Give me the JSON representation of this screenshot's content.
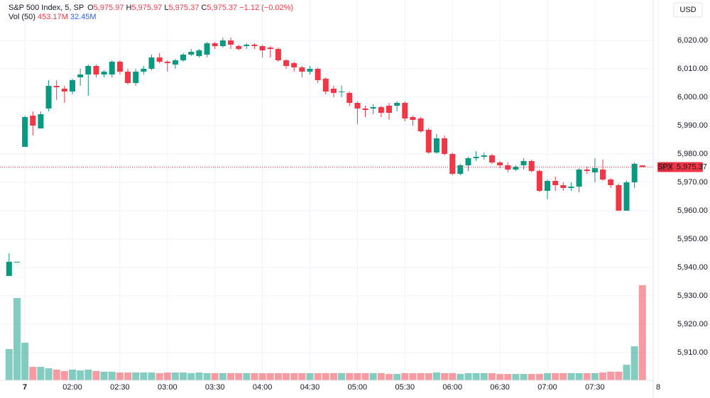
{
  "chart_data": {
    "type": "candlestick",
    "header": {
      "symbol": "S&P 500 Index, 5, SP",
      "o_label": "O",
      "o_value": "5,975.97",
      "h_label": "H",
      "h_value": "5,975.97",
      "l_label": "L",
      "l_value": "5,975.37",
      "c_label": "C",
      "c_value": "5,975.37",
      "change": "−1.12 (−0.02%)"
    },
    "volume_legend": {
      "name": "Vol (50)",
      "value": "453.17M",
      "ma": "32.45M"
    },
    "currency": "USD",
    "last_price": {
      "symbol": "SPX",
      "value": 5975.37,
      "label": "5,975.37"
    },
    "categories": [
      null,
      null,
      "7",
      null,
      null,
      null,
      null,
      null,
      "02:00",
      null,
      null,
      null,
      null,
      null,
      "02:30",
      null,
      null,
      null,
      null,
      null,
      "03:00",
      null,
      null,
      null,
      null,
      null,
      "03:30",
      null,
      null,
      null,
      null,
      null,
      "04:00",
      null,
      null,
      null,
      null,
      null,
      "04:30",
      null,
      null,
      null,
      null,
      null,
      "05:00",
      null,
      null,
      null,
      null,
      null,
      "05:30",
      null,
      null,
      null,
      null,
      null,
      "06:00",
      null,
      null,
      null,
      null,
      null,
      "06:30",
      null,
      null,
      null,
      null,
      null,
      "07:00",
      null,
      null,
      null,
      null,
      null,
      "07:30",
      null,
      null,
      null,
      null,
      null,
      null,
      null,
      "8"
    ],
    "open": [
      5937,
      5942,
      5982.5,
      5993.5,
      5989,
      5996,
      6004,
      6003,
      6002,
      6007,
      6008,
      6011,
      6008,
      6008,
      6012.5,
      6009,
      6005,
      6009,
      6010,
      6014,
      6012.5,
      6011.5,
      6013,
      6015,
      6014.5,
      6015,
      6019,
      6018,
      6020,
      6018,
      6018,
      6018.5,
      6018,
      6017.5,
      6017,
      6013,
      6012,
      6010.5,
      6009,
      6010,
      6006.5,
      6003,
      6002,
      6001.5,
      5998,
      5996,
      5996,
      5996.5,
      5997,
      5997,
      5998,
      5993,
      5992.5,
      5988.5,
      5980.5,
      5985.5,
      5980,
      5973,
      5976,
      5978.5,
      5979,
      5979.5,
      5977,
      5976,
      5974.5,
      5976,
      5977.5,
      5974,
      5967,
      5970.5,
      5969,
      5968,
      5968.5,
      5974.5,
      5973.5,
      5974.5,
      5971,
      5969,
      5960,
      5970,
      5975.97,
      null,
      null
    ],
    "high": [
      5945,
      5942,
      5993.5,
      5995,
      5995,
      6006,
      6006,
      6004,
      6006.5,
      6010,
      6011.5,
      6011.5,
      6009.5,
      6013,
      6013,
      6010,
      6010,
      6011,
      6015,
      6015.5,
      6013,
      6013.5,
      6015.5,
      6017,
      6017,
      6019.5,
      6019.5,
      6021,
      6021,
      6018.5,
      6019,
      6019,
      6018.5,
      6018,
      6017.5,
      6013.5,
      6012.5,
      6011,
      6011,
      6010.5,
      6007,
      6004,
      6004,
      6002,
      5998.5,
      5997,
      5997.5,
      5997,
      5998,
      5998.5,
      5998.5,
      5993.5,
      5993,
      5989,
      5987,
      5986.5,
      5980.5,
      5976.5,
      5979,
      5981,
      5980.5,
      5980,
      5977.5,
      5977,
      5976,
      5978.5,
      5978,
      5974.5,
      5971,
      5972,
      5970,
      5970,
      5975,
      5975.5,
      5978.5,
      5978,
      5971.5,
      5969.5,
      5970.5,
      5977,
      5975.97,
      null,
      null
    ],
    "low": [
      5937,
      5942,
      5982.5,
      5986.5,
      5989,
      5995,
      5999,
      5998,
      6001,
      6004,
      6000.5,
      6007,
      6007,
      6007,
      6008,
      6004.5,
      6004,
      6008,
      6009.5,
      6012,
      6009,
      6010,
      6012.5,
      6014.5,
      6014,
      6014,
      6017,
      6017.5,
      6017,
      6016.5,
      6017,
      6017,
      6014,
      6014,
      6012.5,
      6010,
      6009,
      6007,
      6008,
      6005,
      6001,
      6000,
      6000,
      5997,
      5990.5,
      5993,
      5994,
      5993,
      5992,
      5995,
      5991.5,
      5990,
      5987.5,
      5980,
      5980,
      5979.5,
      5972.5,
      5972.5,
      5974,
      5977.5,
      5978,
      5976.5,
      5975,
      5973.5,
      5974,
      5974.5,
      5973.5,
      5966.5,
      5964,
      5967,
      5967,
      5967,
      5966.5,
      5973,
      5970,
      5970.5,
      5968,
      5960,
      5960,
      5968,
      5975.37,
      null,
      null
    ],
    "close": [
      5942,
      5942,
      5993,
      5990,
      5994,
      6004,
      6003.5,
      6002,
      6006,
      6008,
      6011,
      6008,
      6009,
      6012.5,
      6009,
      6005,
      6009,
      6010,
      6014,
      6012.5,
      6012,
      6013,
      6015,
      6016,
      6016.5,
      6019,
      6018,
      6020,
      6018.5,
      6017,
      6018.5,
      6018,
      6016.5,
      6017,
      6013,
      6011,
      6010.5,
      6009,
      6010,
      6006,
      6002,
      6001.5,
      6002,
      5998,
      5996,
      5995.5,
      5996.5,
      5994.5,
      5994.5,
      5998,
      5992.5,
      5992,
      5988,
      5980.5,
      5985.5,
      5980,
      5973,
      5976,
      5978.5,
      5979,
      5979.5,
      5977,
      5976,
      5974.5,
      5975.5,
      5977.5,
      5974,
      5967,
      5970.5,
      5969,
      5968,
      5968.5,
      5974.5,
      5974,
      5975,
      5971,
      5969,
      5960,
      5970,
      5976.5,
      5975.37,
      null,
      null
    ],
    "volume": [
      149,
      392,
      179,
      64,
      64,
      57,
      51,
      44,
      51,
      47,
      51,
      44,
      41,
      41,
      37,
      37,
      37,
      37,
      37,
      34,
      37,
      37,
      37,
      34,
      37,
      34,
      34,
      34,
      34,
      34,
      34,
      34,
      34,
      34,
      34,
      34,
      34,
      34,
      34,
      34,
      34,
      34,
      34,
      34,
      34,
      34,
      34,
      34,
      30,
      30,
      34,
      34,
      34,
      34,
      37,
      34,
      34,
      30,
      34,
      34,
      34,
      34,
      30,
      30,
      30,
      30,
      30,
      30,
      34,
      34,
      34,
      34,
      34,
      34,
      34,
      37,
      41,
      41,
      74,
      162,
      453.17,
      null,
      null
    ],
    "up_color": "#089981",
    "down_color": "#f23645",
    "ylim": [
      5900.25,
      6034.25
    ],
    "volume_ylim": [
      0,
      1812
    ],
    "yticks": [
      {
        "value": 5910,
        "label": "5,910.00"
      },
      {
        "value": 5920,
        "label": "5,920.00"
      },
      {
        "value": 5930,
        "label": "5,930.00"
      },
      {
        "value": 5940,
        "label": "5,940.00"
      },
      {
        "value": 5950,
        "label": "5,950.00"
      },
      {
        "value": 5960,
        "label": "5,960.00"
      },
      {
        "value": 5970,
        "label": "5,970.00"
      },
      {
        "value": 5980,
        "label": "5,980.00"
      },
      {
        "value": 5990,
        "label": "5,990.00"
      },
      {
        "value": 6000,
        "label": "6,000.00"
      },
      {
        "value": 6010,
        "label": "6,010.00"
      },
      {
        "value": 6020,
        "label": "6,020.00"
      }
    ],
    "grid": true
  }
}
